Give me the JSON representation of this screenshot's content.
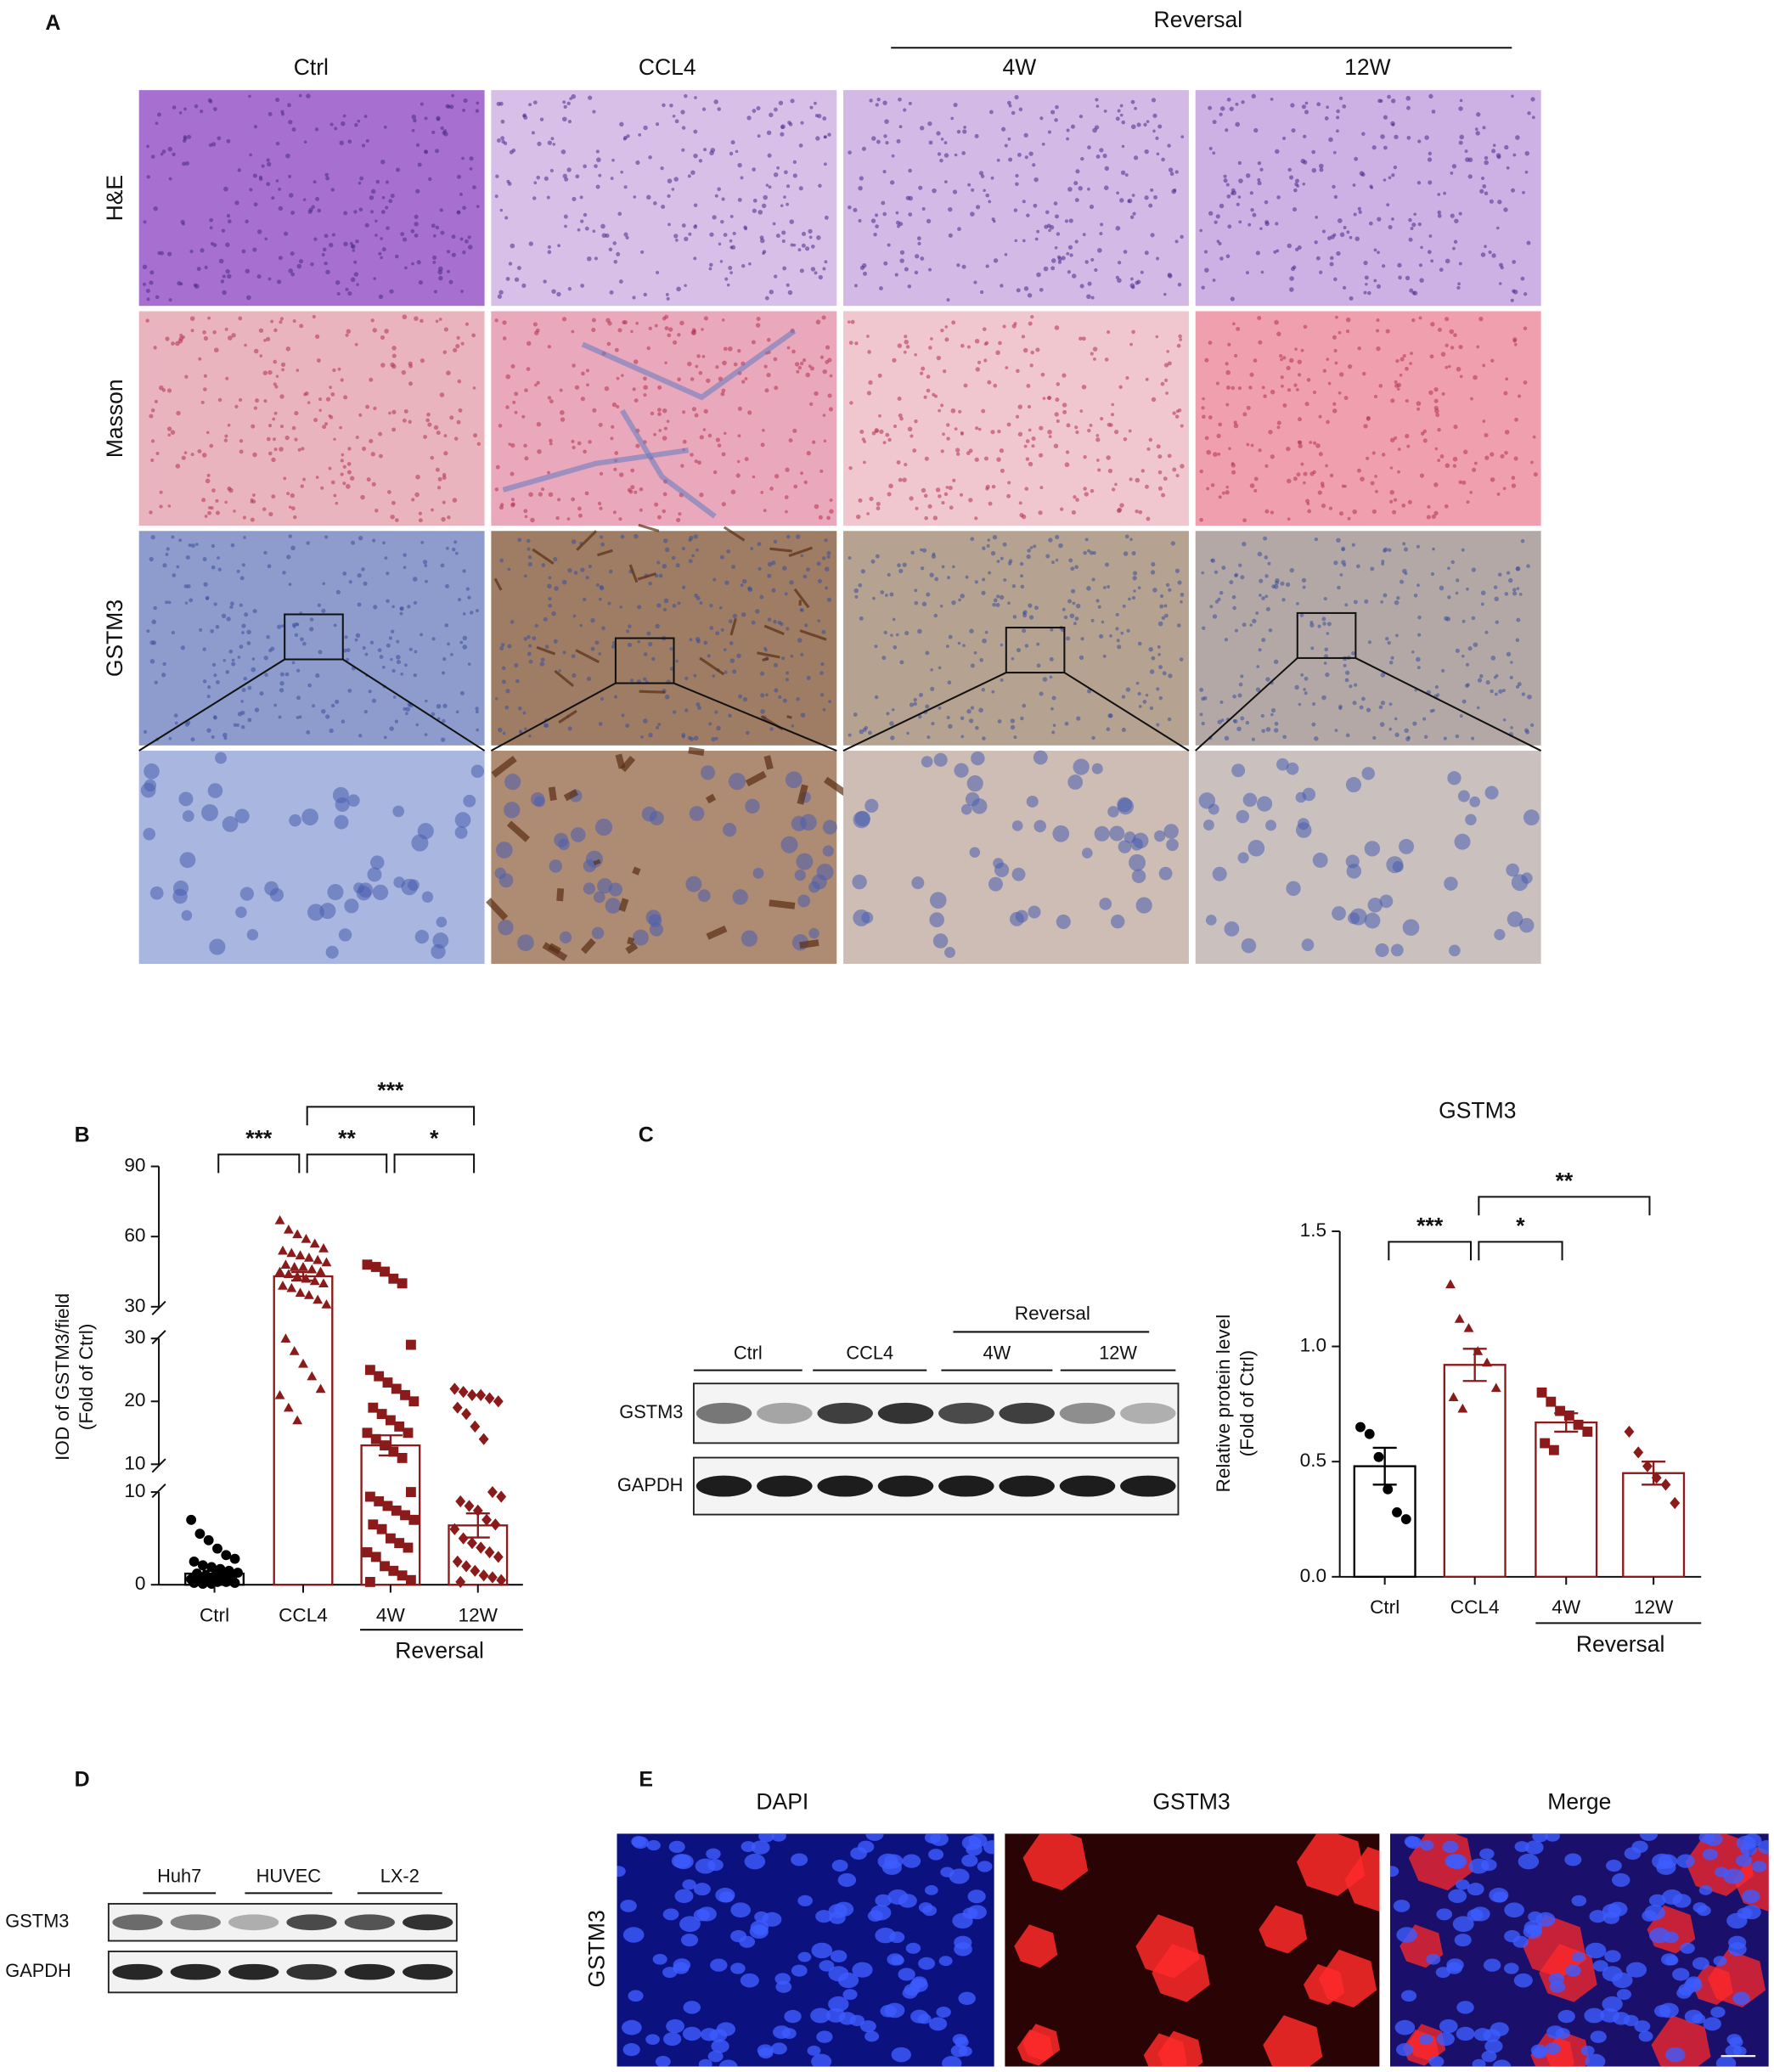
{
  "panel_labels": [
    "A",
    "B",
    "C",
    "D",
    "E"
  ],
  "panel_a": {
    "group_label": "Reversal",
    "columns": [
      "Ctrl",
      "CCL4",
      "4W",
      "12W"
    ],
    "rows": [
      "H&E",
      "Masson",
      "GSTM3"
    ]
  },
  "chart_data": [
    {
      "type": "bar",
      "y_label": [
        "IOD of GSTM3/field",
        "(Fold of Ctrl)"
      ],
      "categories": [
        "Ctrl",
        "CCL4",
        "4W",
        "12W"
      ],
      "group_label": "Reversal",
      "colors": [
        "#000000",
        "#8b1a1a",
        "#8b1a1a",
        "#8b1a1a"
      ],
      "markers": [
        "circle",
        "triangle",
        "square",
        "diamond"
      ],
      "values": [
        1.2,
        43,
        13,
        6.4
      ],
      "errors": [
        0.3,
        1.8,
        1.6,
        1.3
      ],
      "points": [
        [
          7.0,
          5.5,
          4.8,
          3.9,
          3.2,
          2.8,
          2.5,
          2.1,
          1.9,
          1.7,
          1.5,
          1.3,
          1.2,
          1.0,
          0.9,
          0.8,
          0.7,
          0.6,
          0.5,
          0.4,
          0.3,
          0.3,
          0.2,
          0.2,
          0.1,
          0.1
        ],
        [
          67,
          63,
          61,
          59,
          57,
          55,
          54,
          53,
          52,
          51,
          50,
          49,
          48,
          47,
          47,
          46,
          45,
          45,
          44,
          43,
          42,
          41,
          40,
          39,
          38,
          36,
          35,
          33,
          31,
          30,
          28,
          26,
          24,
          22,
          21,
          19,
          17
        ],
        [
          48,
          47,
          45,
          42,
          40,
          29,
          25,
          24,
          23,
          22,
          21,
          20,
          19,
          18,
          17,
          16,
          15,
          15,
          14,
          13,
          12,
          11,
          10,
          9.5,
          9,
          8.5,
          8,
          7.5,
          7,
          6.5,
          6,
          5,
          4.5,
          4,
          3.5,
          3,
          2,
          1.5,
          1,
          0.5,
          0.3
        ],
        [
          22,
          21.5,
          21,
          21,
          20.5,
          20,
          19,
          18,
          16,
          14,
          10,
          9.5,
          9,
          8.5,
          8,
          7,
          6.5,
          6,
          5,
          4.5,
          4,
          3.5,
          3,
          2.5,
          2,
          1.5,
          1,
          0.8,
          0.5,
          0.3
        ]
      ],
      "y_segments": [
        {
          "ylim": [
            0,
            10
          ],
          "yticks": [
            0,
            10
          ]
        },
        {
          "ylim": [
            10,
            30
          ],
          "yticks": [
            10,
            20,
            30
          ]
        },
        {
          "ylim": [
            30,
            90
          ],
          "yticks": [
            30,
            60,
            90
          ]
        }
      ],
      "significance": [
        {
          "pair": [
            0,
            1
          ],
          "label": "***"
        },
        {
          "pair": [
            1,
            2
          ],
          "label": "**"
        },
        {
          "pair": [
            2,
            3
          ],
          "label": "*"
        },
        {
          "pair": [
            1,
            3
          ],
          "label": "***"
        }
      ]
    },
    {
      "type": "bar",
      "title": "GSTM3",
      "y_label": [
        "Relative protein level",
        "(Fold of Ctrl)"
      ],
      "categories": [
        "Ctrl",
        "CCL4",
        "4W",
        "12W"
      ],
      "group_label": "Reversal",
      "colors": [
        "#000000",
        "#8b1a1a",
        "#8b1a1a",
        "#8b1a1a"
      ],
      "markers": [
        "circle",
        "triangle",
        "square",
        "diamond"
      ],
      "values": [
        0.48,
        0.92,
        0.67,
        0.45
      ],
      "errors": [
        0.08,
        0.07,
        0.04,
        0.05
      ],
      "points": [
        [
          0.65,
          0.62,
          0.52,
          0.38,
          0.28,
          0.25
        ],
        [
          1.27,
          1.12,
          1.08,
          0.98,
          0.93,
          0.82,
          0.78,
          0.73
        ],
        [
          0.8,
          0.76,
          0.72,
          0.7,
          0.66,
          0.63,
          0.58,
          0.55
        ],
        [
          0.63,
          0.54,
          0.48,
          0.43,
          0.4,
          0.32
        ]
      ],
      "ylim": [
        0,
        1.5
      ],
      "yticks": [
        {
          "value": 0,
          "label": "0.0"
        },
        0.5,
        {
          "value": 1,
          "label": "1.0"
        },
        1.5
      ],
      "significance": [
        {
          "pair": [
            0,
            1
          ],
          "label": "***"
        },
        {
          "pair": [
            1,
            2
          ],
          "label": "*"
        },
        {
          "pair": [
            1,
            3
          ],
          "label": "**"
        }
      ]
    }
  ],
  "blot_c": {
    "group_label": "Reversal",
    "groups": [
      "Ctrl",
      "CCL4",
      "4W",
      "12W"
    ],
    "rows": [
      "GSTM3",
      "GAPDH"
    ]
  },
  "panel_d": {
    "groups": [
      "Huh7",
      "HUVEC",
      "LX-2"
    ],
    "rows": [
      "GSTM3",
      "GAPDH"
    ]
  },
  "panel_e": {
    "columns": [
      "DAPI",
      "GSTM3",
      "Merge"
    ],
    "row": "GSTM3"
  }
}
